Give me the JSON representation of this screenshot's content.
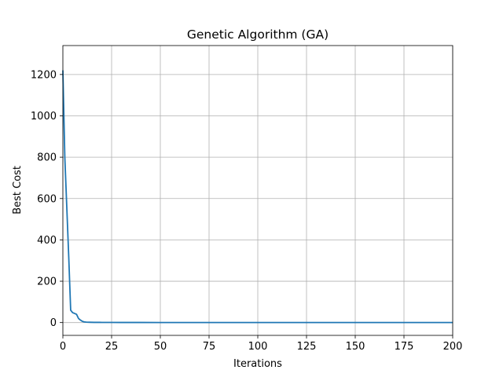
{
  "chart_data": {
    "type": "line",
    "title": "Genetic Algorithm (GA)",
    "xlabel": "Iterations",
    "ylabel": "Best Cost",
    "xlim": [
      0,
      200
    ],
    "ylim": [
      -62,
      1340
    ],
    "xticks": [
      0,
      25,
      50,
      75,
      100,
      125,
      150,
      175,
      200
    ],
    "yticks": [
      0,
      200,
      400,
      600,
      800,
      1000,
      1200
    ],
    "grid": true,
    "legend": "none",
    "series": [
      {
        "color": "#1f77b4",
        "x": [
          0,
          1,
          2,
          3,
          4,
          5,
          6,
          7,
          8,
          9,
          10,
          11,
          12,
          14,
          16,
          20,
          25,
          30,
          40,
          50,
          75,
          100,
          125,
          150,
          175,
          200
        ],
        "y": [
          1220,
          800,
          560,
          320,
          60,
          48,
          44,
          40,
          20,
          12,
          6,
          3,
          2,
          1.5,
          1,
          0.8,
          0.6,
          0.5,
          0.4,
          0.3,
          0.2,
          0.15,
          0.1,
          0.1,
          0.1,
          0.1
        ]
      }
    ]
  }
}
